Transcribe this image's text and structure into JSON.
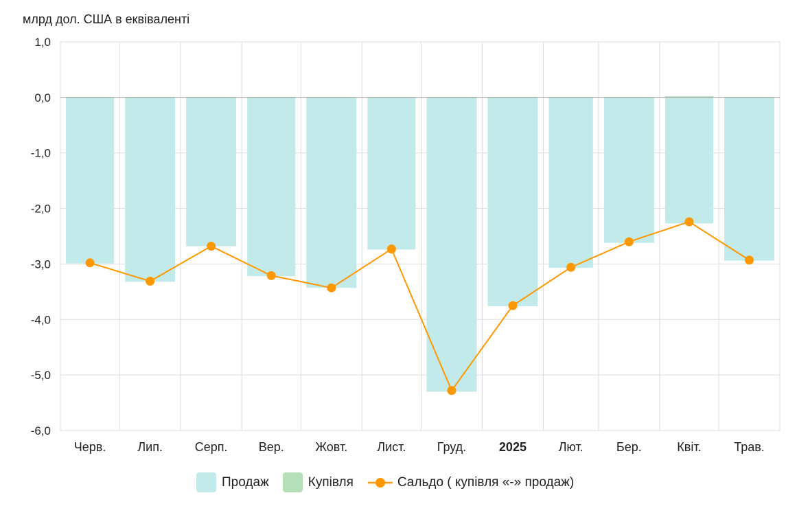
{
  "chart_data": {
    "type": "bar",
    "ylabel": "млрд дол. США в еквіваленті",
    "ylim": [
      -6,
      1
    ],
    "yticks": [
      "1,0",
      "0,0",
      "-1,0",
      "-2,0",
      "-3,0",
      "-4,0",
      "-5,0",
      "-6,0"
    ],
    "ytick_values": [
      1,
      0,
      -1,
      -2,
      -3,
      -4,
      -5,
      -6
    ],
    "grid": true,
    "categories": [
      "Черв.",
      "Лип.",
      "Серп.",
      "Вер.",
      "Жовт.",
      "Лист.",
      "Груд.",
      "2025",
      "Лют.",
      "Бер.",
      "Квіт.",
      "Трав."
    ],
    "bold_categories": [
      "2025"
    ],
    "series": [
      {
        "name": "Продаж",
        "type": "bar",
        "color": "#c2eaea",
        "values": [
          -2.99,
          -3.32,
          -2.68,
          -3.22,
          -3.43,
          -2.74,
          -5.3,
          -3.76,
          -3.07,
          -2.62,
          -2.27,
          -2.94
        ]
      },
      {
        "name": "Купівля",
        "type": "bar",
        "color": "#b5dfb8",
        "values": [
          0.01,
          0.01,
          0.01,
          0.01,
          0.01,
          0.01,
          0.01,
          0.01,
          0.01,
          0.01,
          0.02,
          0.01
        ]
      },
      {
        "name": "Сальдо ( купівля «-» продаж)",
        "type": "line",
        "color": "#ff9800",
        "values": [
          -2.98,
          -3.31,
          -2.68,
          -3.21,
          -3.43,
          -2.73,
          -5.28,
          -3.75,
          -3.06,
          -2.6,
          -2.24,
          -2.93
        ]
      }
    ],
    "legend": "bottom"
  }
}
